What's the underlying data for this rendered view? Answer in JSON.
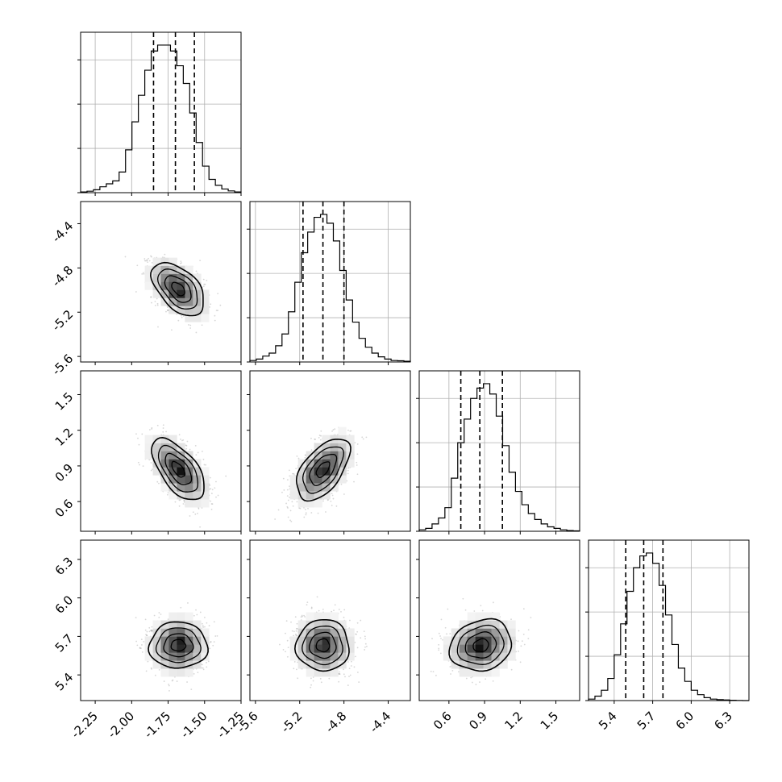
{
  "chart_data": {
    "type": "corner",
    "description_title": "",
    "parameters": [
      {
        "range": [
          -2.35,
          -1.25
        ],
        "ticks": [
          "-2.25",
          "-2.00",
          "-1.75",
          "-1.50",
          "-1.25"
        ],
        "tick_values": [
          -2.25,
          -2.0,
          -1.75,
          -1.5,
          -1.25
        ],
        "quantiles": [
          -1.85,
          -1.7,
          -1.57
        ],
        "hist": [
          0.005,
          0.01,
          0.02,
          0.04,
          0.06,
          0.08,
          0.14,
          0.29,
          0.48,
          0.66,
          0.83,
          0.96,
          1.0,
          1.0,
          0.96,
          0.86,
          0.74,
          0.54,
          0.34,
          0.18,
          0.09,
          0.05,
          0.025,
          0.012,
          0.005
        ]
      },
      {
        "range": [
          -5.65,
          -4.2
        ],
        "ticks": [
          "-5.6",
          "-5.2",
          "-4.8",
          "-4.4"
        ],
        "tick_values": [
          -5.6,
          -5.2,
          -4.8,
          -4.4
        ],
        "quantiles": [
          -5.17,
          -4.99,
          -4.8
        ],
        "hist": [
          0.01,
          0.02,
          0.04,
          0.06,
          0.11,
          0.19,
          0.34,
          0.54,
          0.74,
          0.88,
          0.98,
          1.0,
          0.94,
          0.82,
          0.62,
          0.42,
          0.27,
          0.16,
          0.1,
          0.06,
          0.035,
          0.02,
          0.01,
          0.008,
          0.005
        ]
      },
      {
        "range": [
          0.35,
          1.7
        ],
        "ticks": [
          "0.6",
          "0.9",
          "1.2",
          "1.5"
        ],
        "tick_values": [
          0.6,
          0.9,
          1.2,
          1.5
        ],
        "quantiles": [
          0.7,
          0.86,
          1.05
        ],
        "hist": [
          0.01,
          0.02,
          0.05,
          0.09,
          0.16,
          0.36,
          0.6,
          0.76,
          0.9,
          0.97,
          1.0,
          0.93,
          0.78,
          0.58,
          0.4,
          0.27,
          0.18,
          0.12,
          0.08,
          0.05,
          0.03,
          0.02,
          0.01,
          0.005,
          0.003
        ]
      },
      {
        "range": [
          5.2,
          6.45
        ],
        "ticks": [
          "5.4",
          "5.7",
          "6.0",
          "6.3"
        ],
        "tick_values": [
          5.4,
          5.7,
          6.0,
          6.3
        ],
        "quantiles": [
          5.49,
          5.63,
          5.78
        ],
        "hist": [
          0.01,
          0.03,
          0.07,
          0.15,
          0.31,
          0.52,
          0.74,
          0.9,
          0.98,
          1.0,
          0.93,
          0.78,
          0.58,
          0.38,
          0.22,
          0.13,
          0.07,
          0.04,
          0.02,
          0.01,
          0.006,
          0.004,
          0.002,
          0.001,
          0.0
        ]
      }
    ],
    "pairs": [
      {
        "row": 1,
        "col": 0,
        "mean": [
          -1.68,
          -4.99
        ],
        "sd": [
          0.09,
          0.12
        ],
        "rho": -0.5
      },
      {
        "row": 2,
        "col": 0,
        "mean": [
          -1.68,
          0.87
        ],
        "sd": [
          0.09,
          0.13
        ],
        "rho": -0.6
      },
      {
        "row": 2,
        "col": 1,
        "mean": [
          -4.99,
          0.87
        ],
        "sd": [
          0.12,
          0.13
        ],
        "rho": 0.55
      },
      {
        "row": 3,
        "col": 0,
        "mean": [
          -1.68,
          5.63
        ],
        "sd": [
          0.09,
          0.1
        ],
        "rho": 0.0
      },
      {
        "row": 3,
        "col": 1,
        "mean": [
          -4.99,
          5.63
        ],
        "sd": [
          0.12,
          0.1
        ],
        "rho": 0.0
      },
      {
        "row": 3,
        "col": 2,
        "mean": [
          0.87,
          5.63
        ],
        "sd": [
          0.13,
          0.1
        ],
        "rho": 0.15
      }
    ],
    "contour_levels_sigma": [
      0.5,
      1.0,
      1.5,
      2.0
    ],
    "grid": true,
    "colors": {
      "line": "#000000",
      "grid": "#b0b0b0",
      "scatter": "#8c8c8c",
      "density_dark": "#000000",
      "density_light": "#ffffff"
    }
  }
}
